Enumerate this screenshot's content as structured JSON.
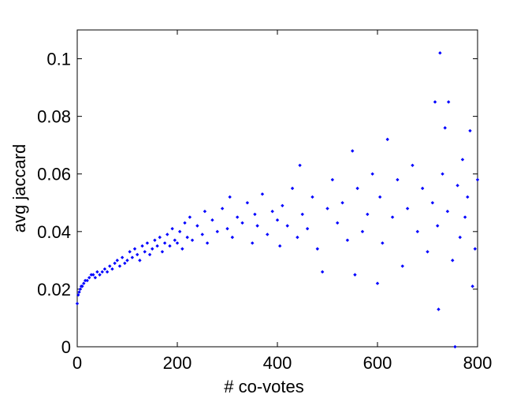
{
  "chart_data": {
    "type": "scatter",
    "xlabel": "# co-votes",
    "ylabel": "avg jaccard",
    "color": "#0000ff",
    "xlim": [
      0,
      800
    ],
    "xticks": [
      0,
      200,
      400,
      600,
      800
    ],
    "ylim": [
      0,
      0.11
    ],
    "yticks": [
      0,
      0.02,
      0.04,
      0.06,
      0.08,
      0.1
    ],
    "x": [
      0,
      2,
      4,
      6,
      8,
      10,
      13,
      16,
      20,
      24,
      28,
      32,
      36,
      40,
      45,
      50,
      55,
      60,
      65,
      70,
      75,
      80,
      85,
      90,
      95,
      100,
      105,
      110,
      115,
      120,
      125,
      130,
      135,
      140,
      145,
      150,
      155,
      160,
      165,
      170,
      175,
      180,
      185,
      190,
      195,
      200,
      205,
      210,
      215,
      220,
      225,
      230,
      240,
      250,
      255,
      260,
      270,
      280,
      290,
      300,
      305,
      310,
      320,
      330,
      340,
      350,
      355,
      360,
      370,
      380,
      390,
      400,
      405,
      410,
      420,
      430,
      440,
      445,
      450,
      460,
      470,
      480,
      490,
      500,
      510,
      520,
      530,
      540,
      550,
      555,
      560,
      570,
      580,
      590,
      600,
      605,
      610,
      620,
      630,
      640,
      650,
      660,
      670,
      680,
      690,
      700,
      710,
      715,
      720,
      722,
      725,
      730,
      735,
      740,
      742,
      750,
      755,
      760,
      765,
      770,
      775,
      780,
      785,
      790,
      795,
      800
    ],
    "values": [
      0.015,
      0.018,
      0.019,
      0.02,
      0.021,
      0.021,
      0.022,
      0.023,
      0.023,
      0.024,
      0.025,
      0.025,
      0.024,
      0.026,
      0.025,
      0.026,
      0.027,
      0.026,
      0.028,
      0.027,
      0.029,
      0.03,
      0.028,
      0.031,
      0.029,
      0.03,
      0.033,
      0.031,
      0.034,
      0.032,
      0.03,
      0.035,
      0.033,
      0.036,
      0.032,
      0.034,
      0.037,
      0.035,
      0.038,
      0.033,
      0.036,
      0.039,
      0.035,
      0.041,
      0.037,
      0.036,
      0.04,
      0.034,
      0.043,
      0.038,
      0.045,
      0.037,
      0.042,
      0.039,
      0.047,
      0.036,
      0.044,
      0.04,
      0.048,
      0.041,
      0.052,
      0.038,
      0.045,
      0.043,
      0.05,
      0.036,
      0.046,
      0.042,
      0.053,
      0.039,
      0.047,
      0.044,
      0.035,
      0.049,
      0.042,
      0.055,
      0.038,
      0.063,
      0.046,
      0.041,
      0.052,
      0.034,
      0.026,
      0.048,
      0.058,
      0.043,
      0.05,
      0.037,
      0.068,
      0.025,
      0.055,
      0.04,
      0.046,
      0.06,
      0.022,
      0.052,
      0.036,
      0.072,
      0.045,
      0.058,
      0.028,
      0.048,
      0.063,
      0.04,
      0.055,
      0.033,
      0.05,
      0.085,
      0.042,
      0.013,
      0.102,
      0.06,
      0.076,
      0.047,
      0.085,
      0.03,
      0,
      0.056,
      0.038,
      0.065,
      0.045,
      0.052,
      0.075,
      0.021,
      0.034,
      0.058
    ]
  }
}
